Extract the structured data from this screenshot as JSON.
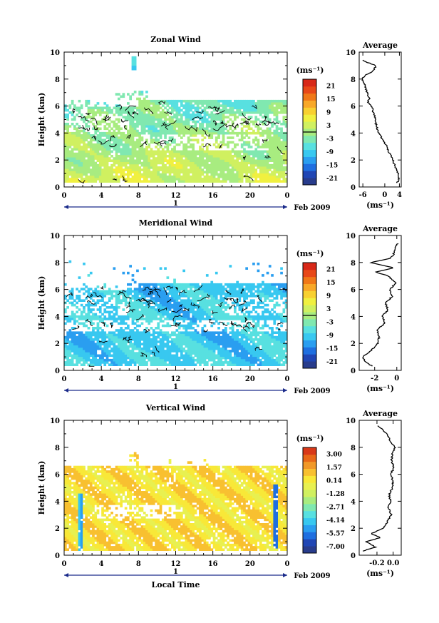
{
  "page": {
    "x_axis_label": "Local Time",
    "date_label": "Feb 2009",
    "day_label": "1"
  },
  "colors": {
    "zonal": [
      "#283c8c",
      "#2046b4",
      "#1f6fe0",
      "#2a9ef0",
      "#38c8f0",
      "#58e0e0",
      "#80e8b0",
      "#a8ec80",
      "#d0f060",
      "#f0f040",
      "#f8d030",
      "#f8a828",
      "#f07818",
      "#e84818",
      "#d82818"
    ],
    "vertical": [
      "#283c8c",
      "#2046b4",
      "#1f6fe0",
      "#2a9ef0",
      "#38c8f0",
      "#58e0e0",
      "#80e8b0",
      "#a8ec80",
      "#d0f060",
      "#e8f050",
      "#f8e838",
      "#f8c030",
      "#f09828",
      "#e86818",
      "#d83818"
    ]
  },
  "chart_data": [
    {
      "type": "heatmap",
      "title": "Zonal Wind",
      "ylabel": "Height (km)",
      "xlabel": "",
      "x_range": [
        0,
        24
      ],
      "ylim": [
        0,
        10
      ],
      "x_ticks": [
        "0",
        "4",
        "8",
        "12",
        "16",
        "20",
        "0"
      ],
      "y_ticks": [
        "0",
        "2",
        "4",
        "6",
        "8",
        "10"
      ],
      "colorbar": {
        "unit": "(ms⁻¹)",
        "ticks": [
          "21",
          "15",
          "9",
          "3",
          "-3",
          "-9",
          "-15",
          "-21"
        ],
        "range": [
          -24,
          24
        ]
      },
      "profile": {
        "title": "Average",
        "xlabel": "(ms⁻¹)",
        "x_ticks": [
          "-6",
          "0",
          "4"
        ],
        "xlim": [
          -7,
          4.5
        ],
        "height": [
          0.3,
          0.6,
          1,
          1.5,
          2,
          2.5,
          3,
          3.5,
          4,
          4.5,
          5,
          5.5,
          6,
          6.3,
          6.6,
          7,
          7.5,
          8,
          8.3,
          8.6,
          9,
          9.2,
          9.4
        ],
        "value": [
          3.4,
          3.9,
          3.6,
          2.8,
          2.2,
          1.3,
          0.6,
          -0.6,
          -1.6,
          -2.3,
          -2.6,
          -3.1,
          -3.6,
          -4.6,
          -4.2,
          -4.9,
          -5.4,
          -6.2,
          -5.3,
          -3.1,
          -2.4,
          -4.4,
          -6.1
        ]
      }
    },
    {
      "type": "heatmap",
      "title": "Meridional Wind",
      "ylabel": "Height (km)",
      "xlabel": "",
      "x_range": [
        0,
        24
      ],
      "ylim": [
        0,
        10
      ],
      "x_ticks": [
        "0",
        "4",
        "8",
        "12",
        "16",
        "20",
        "0"
      ],
      "y_ticks": [
        "0",
        "2",
        "4",
        "6",
        "8",
        "10"
      ],
      "colorbar": {
        "unit": "(ms⁻¹)",
        "ticks": [
          "21",
          "15",
          "9",
          "3",
          "-3",
          "-9",
          "-15",
          "-21"
        ],
        "range": [
          -24,
          24
        ]
      },
      "profile": {
        "title": "Average",
        "xlabel": "(ms⁻¹)",
        "x_ticks": [
          "-2",
          "0"
        ],
        "xlim": [
          -3.4,
          0.4
        ],
        "height": [
          0.3,
          0.6,
          1,
          1.5,
          2,
          2.5,
          3,
          3.5,
          4,
          4.5,
          5,
          5.5,
          6,
          6.5,
          7,
          7.3,
          7.6,
          8,
          8.3,
          8.6,
          9,
          9.4
        ],
        "value": [
          -2.2,
          -2.8,
          -3.1,
          -2.3,
          -1.7,
          -1.6,
          -1.8,
          -1.1,
          -1.3,
          -0.8,
          -1.0,
          -0.4,
          -0.6,
          -0.1,
          -0.8,
          -1.9,
          -0.2,
          -2.4,
          -0.6,
          -0.3,
          -0.2,
          0.1
        ]
      }
    },
    {
      "type": "heatmap",
      "title": "Vertical Wind",
      "ylabel": "Height (km)",
      "xlabel": "Local Time",
      "x_range": [
        0,
        24
      ],
      "ylim": [
        0,
        10
      ],
      "x_ticks": [
        "0",
        "4",
        "8",
        "12",
        "16",
        "20",
        "0"
      ],
      "y_ticks": [
        "0",
        "2",
        "4",
        "6",
        "8",
        "10"
      ],
      "colorbar": {
        "unit": "(ms⁻¹)",
        "ticks": [
          "3.00",
          "1.57",
          "0.14",
          "-1.28",
          "-2.71",
          "-4.14",
          "-5.57",
          "-7.00"
        ],
        "range": [
          -7.7,
          3.7
        ]
      },
      "profile": {
        "title": "Average",
        "xlabel": "(ms⁻¹)",
        "x_ticks": [
          "-0.2",
          "0.0"
        ],
        "xlim": [
          -0.42,
          0.1
        ],
        "height": [
          0.3,
          0.6,
          1,
          1.3,
          1.6,
          2,
          2.5,
          3,
          3.5,
          4,
          4.5,
          5,
          5.5,
          6,
          6.5,
          7,
          7.5,
          8,
          8.5,
          9,
          9.3,
          9.6
        ],
        "value": [
          -0.38,
          -0.22,
          -0.33,
          -0.16,
          -0.27,
          -0.12,
          -0.07,
          -0.02,
          -0.06,
          -0.03,
          -0.05,
          -0.01,
          0.0,
          -0.03,
          0.01,
          -0.02,
          -0.01,
          0.02,
          -0.04,
          -0.07,
          -0.13,
          -0.19
        ]
      }
    }
  ]
}
